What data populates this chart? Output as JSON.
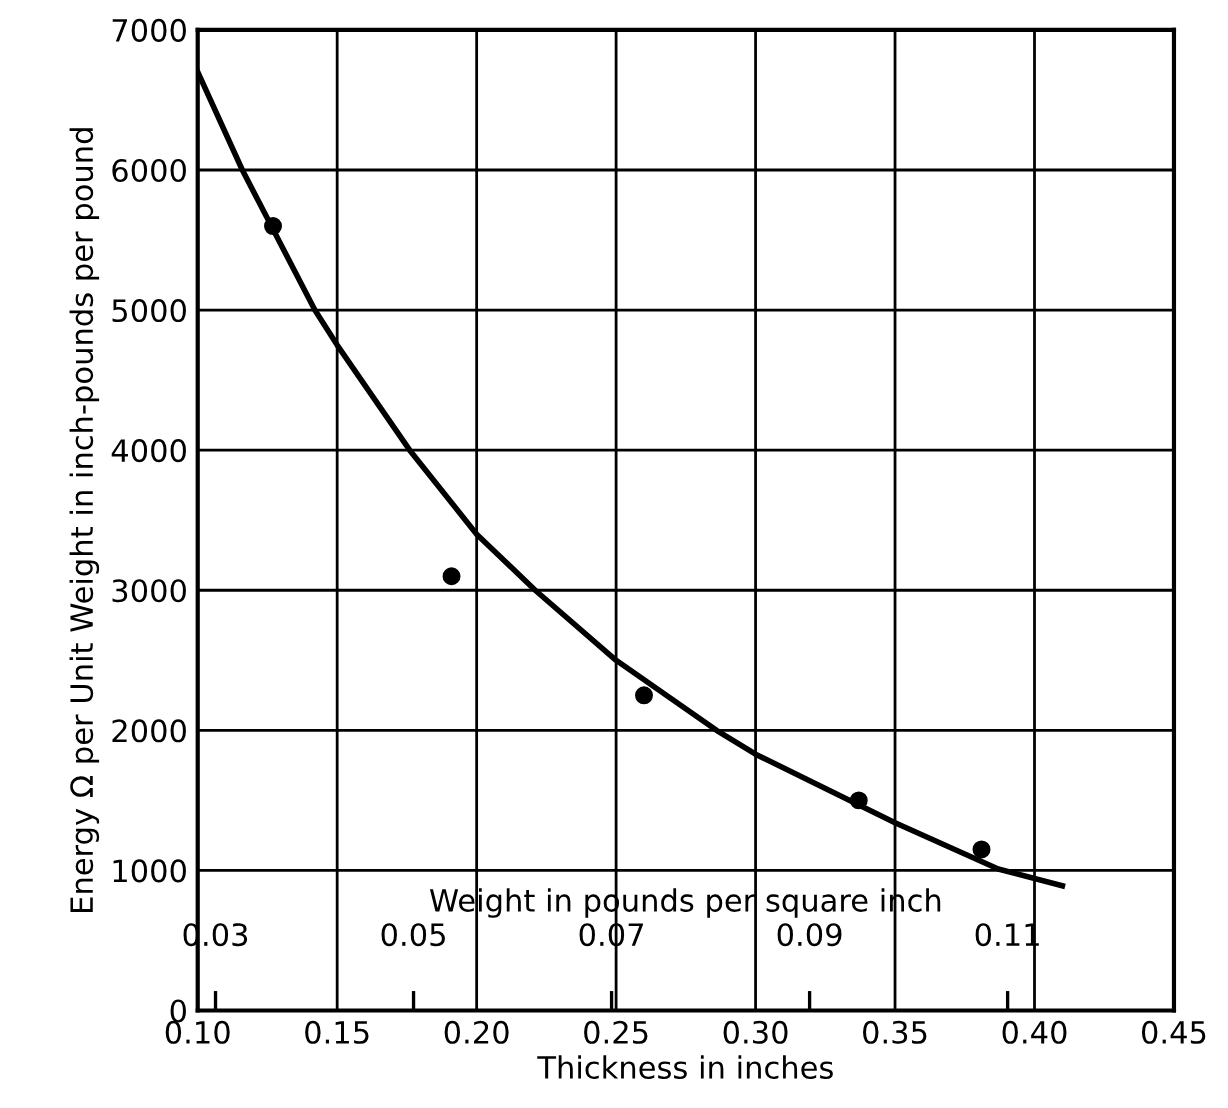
{
  "chart_data": {
    "type": "scatter",
    "xlabel": "Thickness in inches",
    "ylabel": "Energy Ω per Unit Weight in inch-pounds per pound",
    "x2label": "Weight in pounds per square inch",
    "xlim": [
      0.1,
      0.45
    ],
    "xticks": [
      {
        "value": 0.1,
        "label": "0.10"
      },
      0.15,
      {
        "value": 0.2,
        "label": "0.20"
      },
      0.25,
      {
        "value": 0.3,
        "label": "0.30"
      },
      0.35,
      {
        "value": 0.4,
        "label": "0.40"
      },
      0.45
    ],
    "ylim": [
      0,
      7000
    ],
    "yticks": [
      0,
      1000,
      2000,
      3000,
      4000,
      5000,
      6000,
      7000
    ],
    "x2lim": [
      0.0282,
      0.1268
    ],
    "x2ticks": [
      0.03,
      0.05,
      0.07,
      0.09,
      0.11
    ],
    "grid": true,
    "legend": false,
    "series": [
      {
        "color": "#000000",
        "marker": "circle",
        "x": [
          0.127,
          0.191,
          0.26,
          0.337,
          0.381
        ],
        "values": [
          5600,
          3100,
          2250,
          1500,
          1150
        ]
      },
      {
        "type": "line",
        "color": "#000000",
        "line_style": "solid",
        "marker": "none",
        "x": [
          0.1,
          0.116,
          0.142,
          0.15,
          0.176,
          0.2,
          0.221,
          0.25,
          0.286,
          0.3,
          0.35,
          0.387,
          0.41
        ],
        "values": [
          6700,
          6000,
          5000,
          4750,
          4000,
          3400,
          3000,
          2500,
          2000,
          1830,
          1340,
          1010,
          890
        ]
      }
    ]
  }
}
